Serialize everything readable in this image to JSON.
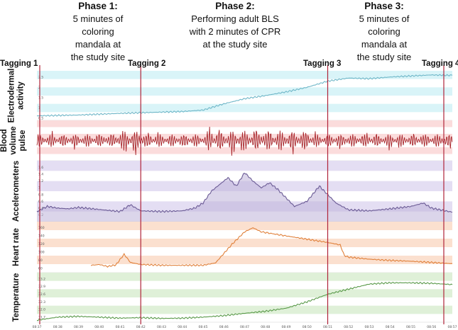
{
  "phases": [
    {
      "title": "Phase 1:",
      "lines": [
        "5 minutes of",
        "coloring",
        "mandala at",
        "the study site"
      ]
    },
    {
      "title": "Phase 2:",
      "lines": [
        "Performing adult BLS",
        "with 2 minutes of CPR",
        "at the study site"
      ]
    },
    {
      "title": "Phase 3:",
      "lines": [
        "5 minutes of",
        "coloring",
        "mandala at",
        "the study site"
      ]
    }
  ],
  "chart_data": {
    "type": "line",
    "x_ticks": [
      "08:37",
      "08:38",
      "08:39",
      "08:40",
      "08:41",
      "08:42",
      "08:43",
      "08:44",
      "08:45",
      "08:46",
      "08:47",
      "08:48",
      "08:49",
      "08:50",
      "08:51",
      "08:52",
      "08:53",
      "08:54",
      "08:55",
      "08:56",
      "08:57"
    ],
    "taggings": [
      {
        "label": "Tagging 1",
        "time": "08:37"
      },
      {
        "label": "Tagging 2",
        "time": "08:42"
      },
      {
        "label": "Tagging 3",
        "time": "08:51"
      },
      {
        "label": "Tagging 4",
        "time": "08:57"
      }
    ],
    "panels": [
      {
        "label_lines": [
          "Electrodermal",
          "activity"
        ],
        "color": "#6fb7c8",
        "band_color": "#d9f4f8",
        "ylim": [
          0.4,
          2.8
        ],
        "y_ticks": [
          "0.5",
          "1",
          "1.5",
          "2",
          "2.5"
        ],
        "points": [
          [
            0,
            0.62
          ],
          [
            1,
            0.64
          ],
          [
            2,
            0.66
          ],
          [
            3,
            0.7
          ],
          [
            4,
            0.74
          ],
          [
            5,
            0.77
          ],
          [
            6,
            0.8
          ],
          [
            7,
            0.83
          ],
          [
            8,
            0.9
          ],
          [
            9,
            1.2
          ],
          [
            10,
            1.45
          ],
          [
            11,
            1.6
          ],
          [
            12,
            1.78
          ],
          [
            13,
            2.0
          ],
          [
            14,
            2.3
          ],
          [
            15,
            2.45
          ],
          [
            16,
            2.42
          ],
          [
            17,
            2.5
          ],
          [
            18,
            2.55
          ],
          [
            19,
            2.6
          ],
          [
            20,
            2.58
          ]
        ]
      },
      {
        "label_lines": [
          "Blood",
          "volume",
          "pulse"
        ],
        "color": "#a8262b",
        "band_color": "#fbdcdc",
        "ylim": [
          -1,
          1
        ],
        "y_ticks": [],
        "points": "oscillating signal around 0 with spikes near 08:41-08:42 and 08:45-08:50"
      },
      {
        "label_lines": [
          "Accelerometers"
        ],
        "color": "#6b5b95",
        "band_color": "#e4def3",
        "ylim": [
          0,
          1.8
        ],
        "y_ticks": [
          "0.2",
          "0.4",
          "0.6",
          "0.8",
          "1",
          "1.2",
          "1.4",
          "1.6"
        ],
        "points": [
          [
            0,
            0.3
          ],
          [
            0.5,
            0.45
          ],
          [
            1,
            0.4
          ],
          [
            1.5,
            0.38
          ],
          [
            2,
            0.42
          ],
          [
            3,
            0.36
          ],
          [
            4,
            0.3
          ],
          [
            4.5,
            0.5
          ],
          [
            5,
            0.32
          ],
          [
            6,
            0.3
          ],
          [
            7,
            0.32
          ],
          [
            7.6,
            0.4
          ],
          [
            8,
            0.55
          ],
          [
            8.4,
            0.9
          ],
          [
            8.8,
            1.1
          ],
          [
            9.2,
            1.3
          ],
          [
            9.6,
            1.05
          ],
          [
            10,
            1.45
          ],
          [
            10.4,
            1.2
          ],
          [
            10.8,
            1.0
          ],
          [
            11.2,
            1.15
          ],
          [
            11.6,
            0.95
          ],
          [
            12,
            0.7
          ],
          [
            12.4,
            0.45
          ],
          [
            13,
            0.6
          ],
          [
            13.6,
            1.05
          ],
          [
            14,
            0.8
          ],
          [
            14.4,
            0.55
          ],
          [
            15,
            0.35
          ],
          [
            16,
            0.32
          ],
          [
            17,
            0.38
          ],
          [
            18,
            0.45
          ],
          [
            18.6,
            0.55
          ],
          [
            19,
            0.4
          ],
          [
            20,
            0.28
          ]
        ]
      },
      {
        "label_lines": [
          "Heart rate"
        ],
        "color": "#e0803a",
        "band_color": "#fbe0cf",
        "ylim": [
          50,
          175
        ],
        "y_ticks": [
          "60",
          "80",
          "100",
          "120",
          "140",
          "160"
        ],
        "points": [
          [
            2.6,
            68
          ],
          [
            3,
            70
          ],
          [
            3.4,
            65
          ],
          [
            3.8,
            69
          ],
          [
            4.2,
            95
          ],
          [
            4.5,
            75
          ],
          [
            5,
            70
          ],
          [
            6,
            68
          ],
          [
            7,
            68
          ],
          [
            8,
            68
          ],
          [
            8.6,
            74
          ],
          [
            9.4,
            120
          ],
          [
            10,
            150
          ],
          [
            10.4,
            160
          ],
          [
            10.8,
            150
          ],
          [
            12,
            140
          ],
          [
            13,
            132
          ],
          [
            14,
            124
          ],
          [
            14.6,
            118
          ],
          [
            14.8,
            92
          ],
          [
            15,
            88
          ],
          [
            16,
            83
          ],
          [
            17,
            80
          ],
          [
            18,
            78
          ],
          [
            19,
            75
          ],
          [
            20,
            72
          ]
        ]
      },
      {
        "label_lines": [
          "Temperature"
        ],
        "color": "#5a9a4a",
        "band_color": "#dff0d8",
        "ylim": [
          31.5,
          33.45
        ],
        "y_ticks": [
          "31.7",
          "32.0",
          "32.3",
          "32.6",
          "32.9",
          "33.2"
        ],
        "points": [
          [
            0,
            31.58
          ],
          [
            1,
            31.7
          ],
          [
            2,
            31.73
          ],
          [
            3,
            31.7
          ],
          [
            4,
            31.66
          ],
          [
            5,
            31.68
          ],
          [
            6,
            31.65
          ],
          [
            7,
            31.66
          ],
          [
            8,
            31.7
          ],
          [
            9,
            31.76
          ],
          [
            10,
            31.85
          ],
          [
            11,
            31.93
          ],
          [
            12,
            32.05
          ],
          [
            13,
            32.3
          ],
          [
            14,
            32.6
          ],
          [
            15,
            32.8
          ],
          [
            16,
            33.0
          ],
          [
            17,
            33.05
          ],
          [
            18,
            33.05
          ],
          [
            19,
            33.03
          ],
          [
            20,
            32.98
          ]
        ]
      }
    ]
  }
}
